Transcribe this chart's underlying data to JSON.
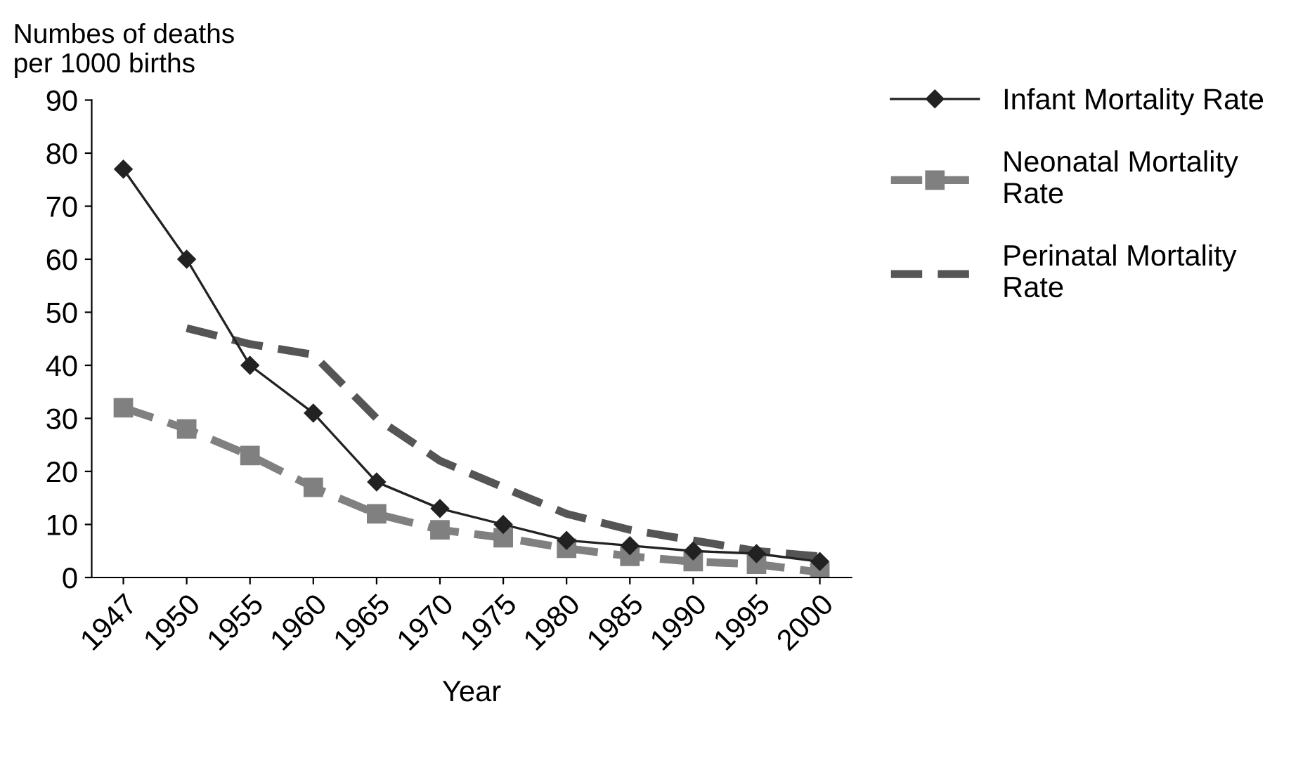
{
  "chart_data": {
    "type": "line",
    "ylabel": "Numbes of deaths\nper 1000 births",
    "xlabel": "Year",
    "categories": [
      "1947",
      "1950",
      "1955",
      "1960",
      "1965",
      "1970",
      "1975",
      "1980",
      "1985",
      "1990",
      "1995",
      "2000"
    ],
    "series": [
      {
        "name": "Infant Mortality Rate",
        "color": "#222222",
        "marker": "diamond",
        "line_style": "solid",
        "values": [
          77,
          60,
          40,
          31,
          18,
          13,
          10,
          7,
          6,
          5,
          4.5,
          3
        ]
      },
      {
        "name": "Neonatal Mortality Rate",
        "color": "#808080",
        "marker": "square",
        "line_style": "dashed",
        "values": [
          32,
          28,
          23,
          17,
          12,
          9,
          7.5,
          5.5,
          4,
          3,
          2.5,
          1
        ]
      },
      {
        "name": "Perinatal Mortality Rate",
        "color": "#555555",
        "marker": "none",
        "line_style": "dashed",
        "values": [
          null,
          47,
          44,
          42,
          30,
          22,
          17,
          12,
          9,
          7,
          5,
          4
        ]
      }
    ],
    "ylim": [
      0,
      90
    ],
    "yticks": [
      0,
      10,
      20,
      30,
      40,
      50,
      60,
      70,
      80,
      90
    ],
    "grid": false,
    "legend": "right"
  }
}
